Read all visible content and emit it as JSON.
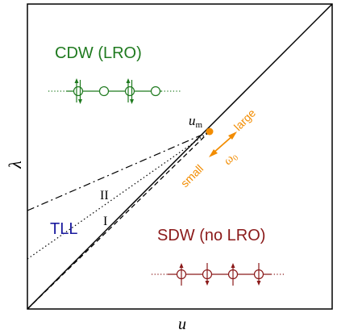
{
  "axes": {
    "x_label": "u",
    "y_label": "λ"
  },
  "phases": {
    "cdw": {
      "label": "CDW (LRO)",
      "color": "#1f7a1f"
    },
    "tll": {
      "label": "TLL",
      "color": "#1a1a9e"
    },
    "sdw": {
      "label": "SDW (no LRO)",
      "color": "#8b1a1a"
    }
  },
  "lines": {
    "line_ii_label": "II",
    "line_i_label": "I"
  },
  "critical_point": {
    "label": "u",
    "subscript": "m",
    "color": "#f28c00"
  },
  "omega_arrow": {
    "label_large": "large",
    "label_small": "small",
    "label_omega": "ω",
    "label_omega_sub": "0",
    "color": "#f28c00"
  }
}
